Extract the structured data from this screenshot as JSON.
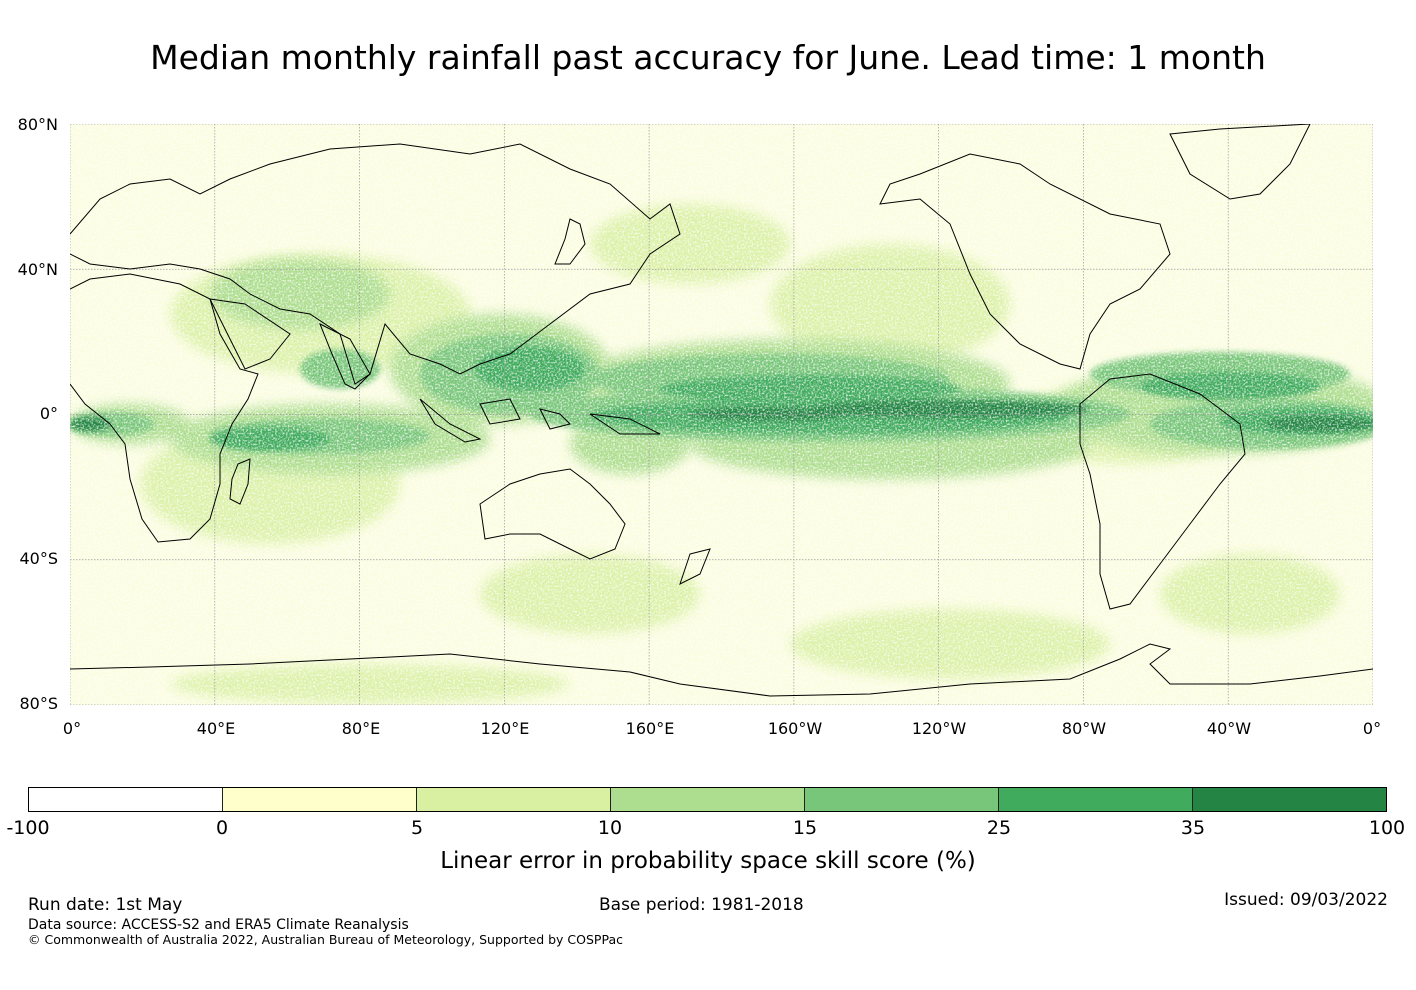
{
  "title": "Median monthly rainfall past accuracy for June. Lead time: 1 month",
  "map": {
    "lat_labels": [
      "80°N",
      "40°N",
      "0°",
      "40°S",
      "80°S"
    ],
    "lon_labels": [
      "0°",
      "40°E",
      "80°E",
      "120°E",
      "160°E",
      "160°W",
      "120°W",
      "80°W",
      "40°W",
      "0°"
    ],
    "background_color": "#fbfde0",
    "gridline_color": "#999999",
    "coastline_color": "#000000"
  },
  "colorbar": {
    "ticks": [
      "-100",
      "0",
      "5",
      "10",
      "15",
      "25",
      "35",
      "100"
    ],
    "colors": [
      "#ffffff",
      "#ffffcc",
      "#d9f0a3",
      "#addd8e",
      "#78c679",
      "#41ab5d",
      "#238443"
    ],
    "label": "Linear error in probability space skill score (%)"
  },
  "footer": {
    "run_date": "Run date: 1st May",
    "base_period": "Base period: 1981-2018",
    "issued": "Issued: 09/03/2022",
    "data_source": "Data source: ACCESS-S2 and ERA5 Climate Reanalysis",
    "copyright": "© Commonwealth of Australia 2022, Australian Bureau of Meteorology, Supported by COSPPac"
  }
}
